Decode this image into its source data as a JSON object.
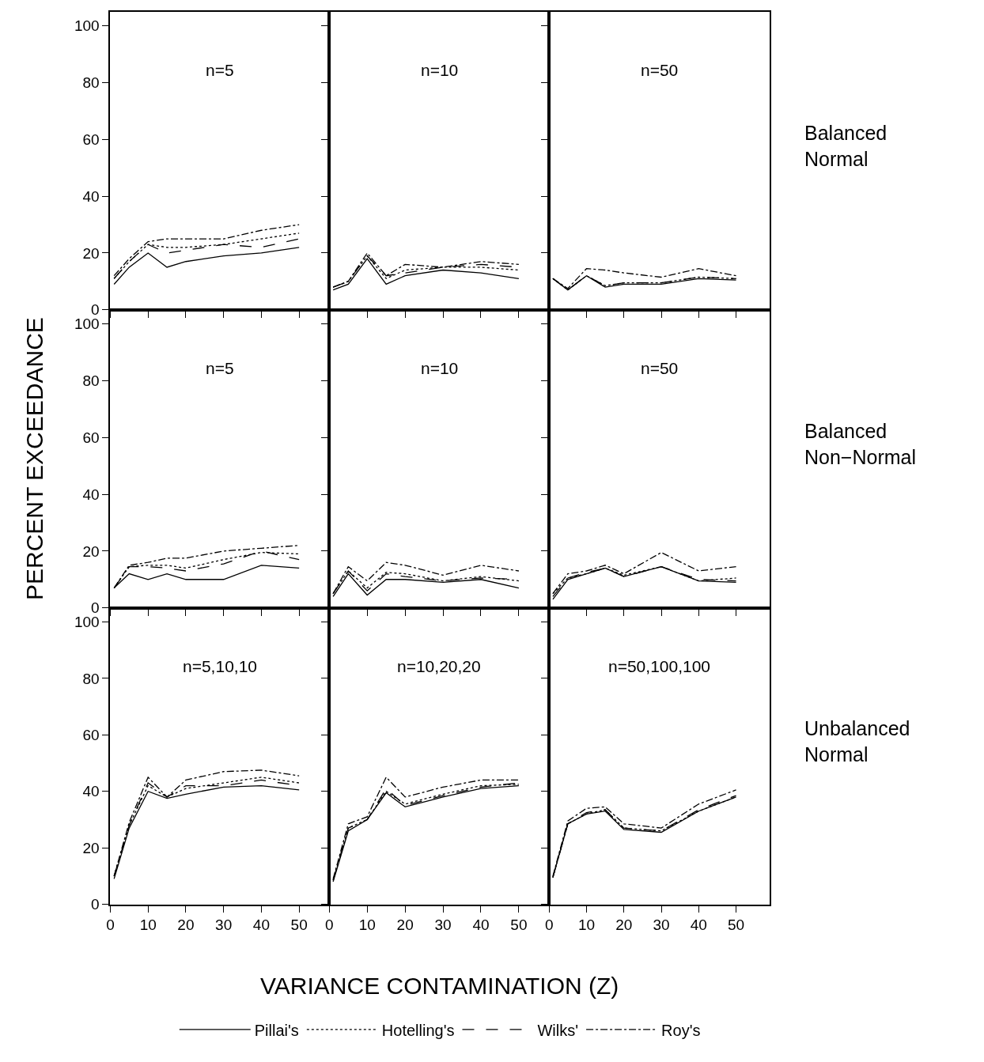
{
  "chart_data": [
    {
      "type": "line",
      "title": "n=5",
      "legend": "bottom",
      "x": [
        1,
        5,
        10,
        15,
        20,
        30,
        40,
        50
      ],
      "xlim": [
        0,
        58
      ],
      "xticks": [
        0,
        10,
        20,
        30,
        40,
        50
      ],
      "ylim": [
        0,
        105
      ],
      "yticks": [
        0,
        20,
        40,
        60,
        80,
        100
      ],
      "tick_labels": "y",
      "series": [
        {
          "name": "Pillai's",
          "color": "#000000",
          "line_style": "solid",
          "values": [
            9,
            15,
            20,
            15,
            17,
            19,
            20,
            22
          ]
        },
        {
          "name": "Hotelling's",
          "color": "#000000",
          "line_style": "dotted",
          "values": [
            11,
            17,
            23,
            22,
            22,
            23,
            25,
            27
          ]
        },
        {
          "name": "Wilks'",
          "color": "#000000",
          "line_style": "dashed",
          "values": [
            11,
            17,
            23,
            20,
            21,
            23,
            22,
            25
          ]
        },
        {
          "name": "Roy's",
          "color": "#000000",
          "line_style": "dashdot",
          "values": [
            12,
            18,
            24,
            25,
            25,
            25,
            28,
            30
          ]
        }
      ]
    },
    {
      "type": "line",
      "title": "n=10",
      "x": [
        1,
        5,
        10,
        15,
        20,
        30,
        40,
        50
      ],
      "xlim": [
        0,
        58
      ],
      "xticks": [
        0,
        10,
        20,
        30,
        40,
        50
      ],
      "ylim": [
        0,
        105
      ],
      "yticks": [
        0,
        20,
        40,
        60,
        80,
        100
      ],
      "tick_labels": false,
      "series": [
        {
          "color": "#000000",
          "line_style": "solid",
          "values": [
            7,
            9,
            18,
            9,
            12,
            14,
            13,
            11
          ]
        },
        {
          "color": "#000000",
          "line_style": "dotted",
          "values": [
            8,
            10,
            19,
            11,
            14,
            15,
            15,
            14
          ]
        },
        {
          "color": "#000000",
          "line_style": "dashed",
          "values": [
            8,
            10,
            19,
            12,
            13,
            15,
            16,
            15
          ]
        },
        {
          "color": "#000000",
          "line_style": "dashdot",
          "values": [
            8,
            10,
            20,
            12,
            16,
            15,
            17,
            16
          ]
        }
      ]
    },
    {
      "type": "line",
      "title": "n=50",
      "x": [
        1,
        5,
        10,
        15,
        20,
        30,
        40,
        50
      ],
      "xlim": [
        0,
        59
      ],
      "xticks": [
        0,
        10,
        20,
        30,
        40,
        50
      ],
      "ylim": [
        0,
        105
      ],
      "yticks": [
        0,
        20,
        40,
        60,
        80,
        100
      ],
      "tick_labels": false,
      "annotations": [
        "Balanced\nNormal"
      ],
      "series": [
        {
          "color": "#000000",
          "line_style": "solid",
          "values": [
            11,
            7,
            12,
            8,
            9,
            9,
            11,
            10.5
          ]
        },
        {
          "color": "#000000",
          "line_style": "dotted",
          "values": [
            11,
            7,
            12,
            8.5,
            9.5,
            9.5,
            11.5,
            11
          ]
        },
        {
          "color": "#000000",
          "line_style": "dashed",
          "values": [
            11,
            7,
            12,
            8.5,
            9.5,
            9.5,
            11.5,
            11
          ]
        },
        {
          "color": "#000000",
          "line_style": "dashdot",
          "values": [
            11,
            7.5,
            14.5,
            14,
            13,
            11.5,
            14.5,
            12
          ]
        }
      ]
    },
    {
      "type": "line",
      "title": "n=5",
      "ylabel": "PERCENT EXCEEDANCE",
      "x": [
        1,
        5,
        10,
        15,
        20,
        30,
        40,
        50
      ],
      "xlim": [
        0,
        58
      ],
      "xticks": [
        0,
        10,
        20,
        30,
        40,
        50
      ],
      "ylim": [
        0,
        105
      ],
      "yticks": [
        0,
        20,
        40,
        60,
        80,
        100
      ],
      "tick_labels": "y",
      "series": [
        {
          "color": "#000000",
          "line_style": "solid",
          "values": [
            7,
            12,
            10,
            12,
            10,
            10,
            15,
            14
          ]
        },
        {
          "color": "#000000",
          "line_style": "dotted",
          "values": [
            7,
            14.5,
            15,
            15,
            14,
            17,
            19.5,
            19
          ]
        },
        {
          "color": "#000000",
          "line_style": "dashed",
          "values": [
            7,
            14.5,
            14.5,
            14,
            13,
            15.5,
            20,
            17
          ]
        },
        {
          "color": "#000000",
          "line_style": "dashdot",
          "values": [
            7,
            15,
            16,
            17.5,
            17.5,
            20,
            21,
            22
          ]
        }
      ]
    },
    {
      "type": "line",
      "title": "n=10",
      "x": [
        1,
        5,
        10,
        15,
        20,
        30,
        40,
        50
      ],
      "xlim": [
        0,
        58
      ],
      "xticks": [
        0,
        10,
        20,
        30,
        40,
        50
      ],
      "ylim": [
        0,
        105
      ],
      "yticks": [
        0,
        20,
        40,
        60,
        80,
        100
      ],
      "tick_labels": false,
      "series": [
        {
          "color": "#000000",
          "line_style": "solid",
          "values": [
            4,
            12,
            4.5,
            10,
            10,
            9,
            10,
            7
          ]
        },
        {
          "color": "#000000",
          "line_style": "dotted",
          "values": [
            5,
            13,
            7,
            12.5,
            12,
            9.5,
            11,
            9.5
          ]
        },
        {
          "color": "#000000",
          "line_style": "dashed",
          "values": [
            5,
            13,
            6,
            12,
            11,
            9.5,
            10.5,
            10
          ]
        },
        {
          "color": "#000000",
          "line_style": "dashdot",
          "values": [
            5,
            14.5,
            9.5,
            16,
            15,
            11.5,
            15,
            13
          ]
        }
      ]
    },
    {
      "type": "line",
      "title": "n=50",
      "x": [
        1,
        5,
        10,
        15,
        20,
        30,
        40,
        50
      ],
      "xlim": [
        0,
        59
      ],
      "xticks": [
        0,
        10,
        20,
        30,
        40,
        50
      ],
      "ylim": [
        0,
        105
      ],
      "yticks": [
        0,
        20,
        40,
        60,
        80,
        100
      ],
      "tick_labels": false,
      "annotations": [
        "Balanced\nNon−Normal"
      ],
      "series": [
        {
          "color": "#000000",
          "line_style": "solid",
          "values": [
            3,
            10,
            12,
            14,
            11,
            14.5,
            9.5,
            9
          ]
        },
        {
          "color": "#000000",
          "line_style": "dotted",
          "values": [
            5,
            10.5,
            12,
            14,
            11.5,
            14.5,
            9.5,
            10.5
          ]
        },
        {
          "color": "#000000",
          "line_style": "dashed",
          "values": [
            4,
            10.5,
            12.5,
            14,
            11,
            14.5,
            10,
            9.5
          ]
        },
        {
          "color": "#000000",
          "line_style": "dashdot",
          "values": [
            5,
            12,
            13,
            15,
            12,
            19.5,
            13,
            14.5
          ]
        }
      ]
    },
    {
      "type": "line",
      "title": "n=5,10,10",
      "x": [
        1,
        5,
        10,
        15,
        20,
        30,
        40,
        50
      ],
      "xlim": [
        0,
        58
      ],
      "xticks": [
        0,
        10,
        20,
        30,
        40,
        50
      ],
      "ylim": [
        0,
        105
      ],
      "yticks": [
        0,
        20,
        40,
        60,
        80,
        100
      ],
      "series": [
        {
          "color": "#000000",
          "line_style": "solid",
          "values": [
            9,
            27,
            40,
            37.5,
            39,
            41.5,
            42,
            40.5
          ]
        },
        {
          "color": "#000000",
          "line_style": "dotted",
          "values": [
            10,
            28,
            42,
            38,
            41,
            43,
            45,
            43
          ]
        },
        {
          "color": "#000000",
          "line_style": "dashed",
          "values": [
            10,
            28,
            43,
            38,
            42,
            42,
            44,
            42
          ]
        },
        {
          "color": "#000000",
          "line_style": "dashdot",
          "values": [
            10,
            29,
            45,
            38,
            44,
            47,
            47.5,
            45.5
          ]
        }
      ]
    },
    {
      "type": "line",
      "title": "n=10,20,20",
      "xlabel": "VARIANCE CONTAMINATION (Z)",
      "x": [
        1,
        5,
        10,
        15,
        20,
        30,
        40,
        50
      ],
      "xlim": [
        0,
        58
      ],
      "xticks": [
        0,
        10,
        20,
        30,
        40,
        50
      ],
      "ylim": [
        0,
        105
      ],
      "yticks": [
        0,
        20,
        40,
        60,
        80,
        100
      ],
      "tick_labels": "x",
      "series": [
        {
          "color": "#000000",
          "line_style": "solid",
          "values": [
            8,
            26,
            30,
            39.5,
            34.5,
            38,
            41,
            42
          ]
        },
        {
          "color": "#000000",
          "line_style": "dotted",
          "values": [
            8.5,
            27,
            30,
            40,
            35.5,
            39,
            42,
            42.5
          ]
        },
        {
          "color": "#000000",
          "line_style": "dashed",
          "values": [
            8.5,
            27,
            30,
            41,
            35,
            38.5,
            41.5,
            43
          ]
        },
        {
          "color": "#000000",
          "line_style": "dashdot",
          "values": [
            9,
            28.5,
            31,
            45,
            38,
            41.5,
            44,
            44
          ]
        }
      ]
    },
    {
      "type": "line",
      "title": "n=50,100,100",
      "x": [
        1,
        5,
        10,
        15,
        20,
        30,
        40,
        50
      ],
      "xlim": [
        0,
        59
      ],
      "xticks": [
        0,
        10,
        20,
        30,
        40,
        50
      ],
      "ylim": [
        0,
        105
      ],
      "yticks": [
        0,
        20,
        40,
        60,
        80,
        100
      ],
      "tick_labels": "x",
      "annotations": [
        "Unbalanced\nNormal"
      ],
      "series": [
        {
          "color": "#000000",
          "line_style": "solid",
          "values": [
            9.5,
            28.5,
            32,
            33,
            26.5,
            25.5,
            33,
            38
          ]
        },
        {
          "color": "#000000",
          "line_style": "dotted",
          "values": [
            9.5,
            28.5,
            32,
            33.5,
            27,
            26,
            33,
            38
          ]
        },
        {
          "color": "#000000",
          "line_style": "dashed",
          "values": [
            9.5,
            28.5,
            32.5,
            33.5,
            27,
            26,
            33.5,
            38.5
          ]
        },
        {
          "color": "#000000",
          "line_style": "dashdot",
          "values": [
            10,
            29.5,
            34,
            34.5,
            28.5,
            27,
            35.5,
            40.5
          ]
        }
      ]
    }
  ]
}
